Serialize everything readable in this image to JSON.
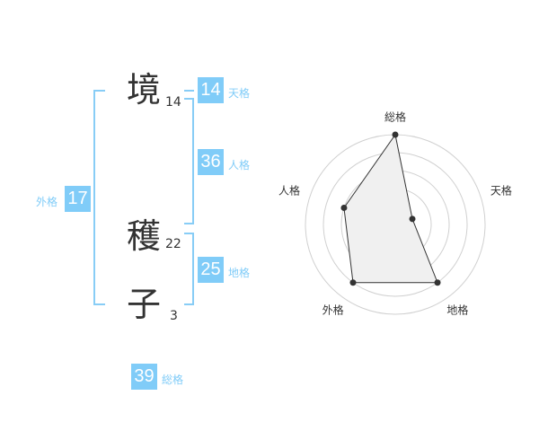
{
  "name": {
    "chars": [
      {
        "char": "境",
        "strokes": "14"
      },
      {
        "char": "穫",
        "strokes": "22"
      },
      {
        "char": "子",
        "strokes": "3"
      }
    ]
  },
  "fortune": {
    "tenkaku": {
      "label": "天格",
      "value": "14"
    },
    "jinkaku": {
      "label": "人格",
      "value": "36"
    },
    "chikaku": {
      "label": "地格",
      "value": "25"
    },
    "gaikaku": {
      "label": "外格",
      "value": "17"
    },
    "soukaku": {
      "label": "総格",
      "value": "39"
    }
  },
  "colors": {
    "accent": "#80ccf8",
    "line": "#333333",
    "fill": "#f0f0f0"
  },
  "chart_data": {
    "type": "radar",
    "axes": [
      "総格",
      "天格",
      "地格",
      "外格",
      "人格"
    ],
    "values": [
      5,
      1,
      4,
      4,
      3
    ],
    "range": [
      0,
      5
    ],
    "rings": 5
  }
}
